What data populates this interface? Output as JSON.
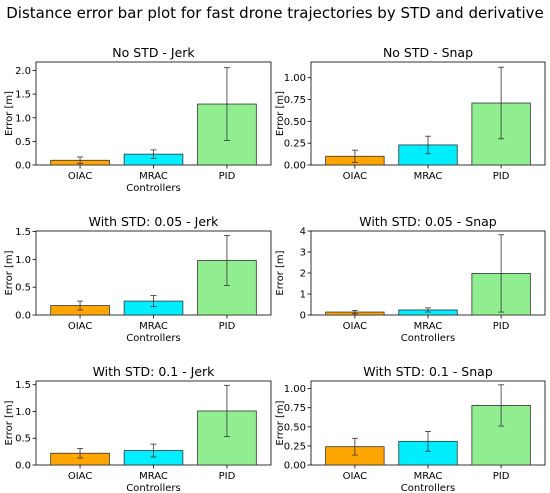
{
  "figure_title": "Distance error bar plot for fast drone trajectories by STD and derivative",
  "colors": {
    "OIAC": "#ffa500",
    "MRAC": "#00eeff",
    "PID": "#90ee90",
    "edge": "#333333",
    "error": "#333333"
  },
  "chart_data": [
    {
      "type": "bar",
      "title": "No STD - Jerk",
      "xlabel": "Controllers",
      "ylabel": "Error [m]",
      "categories": [
        "OIAC",
        "MRAC",
        "PID"
      ],
      "values": [
        0.1,
        0.23,
        1.29
      ],
      "errors": [
        0.07,
        0.09,
        0.77
      ],
      "ylim": [
        0,
        2.18
      ],
      "yticks": [
        0.0,
        0.5,
        1.0,
        1.5,
        2.0
      ],
      "ytick_labels": [
        "0.0",
        "0.5",
        "1.0",
        "1.5",
        "2.0"
      ]
    },
    {
      "type": "bar",
      "title": "No STD - Snap",
      "xlabel": "",
      "ylabel": "Error [m]",
      "categories": [
        "OIAC",
        "MRAC",
        "PID"
      ],
      "values": [
        0.1,
        0.23,
        0.71
      ],
      "errors": [
        0.07,
        0.1,
        0.41
      ],
      "ylim": [
        0,
        1.18
      ],
      "yticks": [
        0.0,
        0.25,
        0.5,
        0.75,
        1.0
      ],
      "ytick_labels": [
        "0.00",
        "0.25",
        "0.50",
        "0.75",
        "1.00"
      ]
    },
    {
      "type": "bar",
      "title": "With STD: 0.05 - Jerk",
      "xlabel": "Controllers",
      "ylabel": "Error [m]",
      "categories": [
        "OIAC",
        "MRAC",
        "PID"
      ],
      "values": [
        0.17,
        0.25,
        0.98
      ],
      "errors": [
        0.08,
        0.1,
        0.45
      ],
      "ylim": [
        0,
        1.51
      ],
      "yticks": [
        0.0,
        0.5,
        1.0,
        1.5
      ],
      "ytick_labels": [
        "0.0",
        "0.5",
        "1.0",
        "1.5"
      ]
    },
    {
      "type": "bar",
      "title": "With STD: 0.05 - Snap",
      "xlabel": "Controllers",
      "ylabel": "Error [m]",
      "categories": [
        "OIAC",
        "MRAC",
        "PID"
      ],
      "values": [
        0.14,
        0.24,
        1.98
      ],
      "errors": [
        0.08,
        0.1,
        1.84
      ],
      "ylim": [
        0,
        4.0
      ],
      "yticks": [
        0,
        1,
        2,
        3,
        4
      ],
      "ytick_labels": [
        "0",
        "1",
        "2",
        "3",
        "4"
      ]
    },
    {
      "type": "bar",
      "title": "With STD: 0.1 - Jerk",
      "xlabel": "Controllers",
      "ylabel": "Error [m]",
      "categories": [
        "OIAC",
        "MRAC",
        "PID"
      ],
      "values": [
        0.22,
        0.27,
        1.01
      ],
      "errors": [
        0.09,
        0.12,
        0.48
      ],
      "ylim": [
        0,
        1.57
      ],
      "yticks": [
        0.0,
        0.5,
        1.0,
        1.5
      ],
      "ytick_labels": [
        "0.0",
        "0.5",
        "1.0",
        "1.5"
      ]
    },
    {
      "type": "bar",
      "title": "With STD: 0.1 - Snap",
      "xlabel": "Controllers",
      "ylabel": "Error [m]",
      "categories": [
        "OIAC",
        "MRAC",
        "PID"
      ],
      "values": [
        0.24,
        0.31,
        0.78
      ],
      "errors": [
        0.11,
        0.13,
        0.27
      ],
      "ylim": [
        0,
        1.1
      ],
      "yticks": [
        0.0,
        0.25,
        0.5,
        0.75,
        1.0
      ],
      "ytick_labels": [
        "0.00",
        "0.25",
        "0.50",
        "0.75",
        "1.00"
      ]
    }
  ]
}
